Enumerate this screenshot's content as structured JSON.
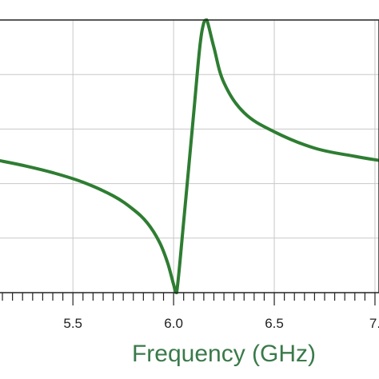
{
  "chart_data": {
    "type": "line",
    "title": "",
    "xlabel": "Frequency (GHz)",
    "ylabel": "",
    "xlim": [
      5.13,
      7.02
    ],
    "ylim": [
      0,
      1
    ],
    "x_ticks": [
      {
        "value": 5.5,
        "label": "5.5"
      },
      {
        "value": 6.0,
        "label": "6.0"
      },
      {
        "value": 6.5,
        "label": "6.5"
      },
      {
        "value": 7.0,
        "label": "7."
      }
    ],
    "y_gridlines": [
      0.2,
      0.4,
      0.6,
      0.8,
      1.0
    ],
    "grid": true,
    "series": [
      {
        "x": [
          5.13,
          5.25,
          5.4,
          5.55,
          5.7,
          5.8,
          5.87,
          5.93,
          5.97,
          6.0,
          6.015,
          6.05,
          6.1,
          6.13,
          6.15,
          6.165,
          6.2,
          6.25,
          6.35,
          6.5,
          6.7,
          6.9,
          7.02
        ],
        "y": [
          0.485,
          0.467,
          0.44,
          0.405,
          0.355,
          0.305,
          0.255,
          0.185,
          0.11,
          0.03,
          0.0,
          0.26,
          0.66,
          0.9,
          0.99,
          1.0,
          0.9,
          0.77,
          0.66,
          0.59,
          0.53,
          0.5,
          0.485
        ]
      }
    ]
  },
  "colors": {
    "line": "#2e7d32",
    "xlabel": "#3a7a4a"
  }
}
